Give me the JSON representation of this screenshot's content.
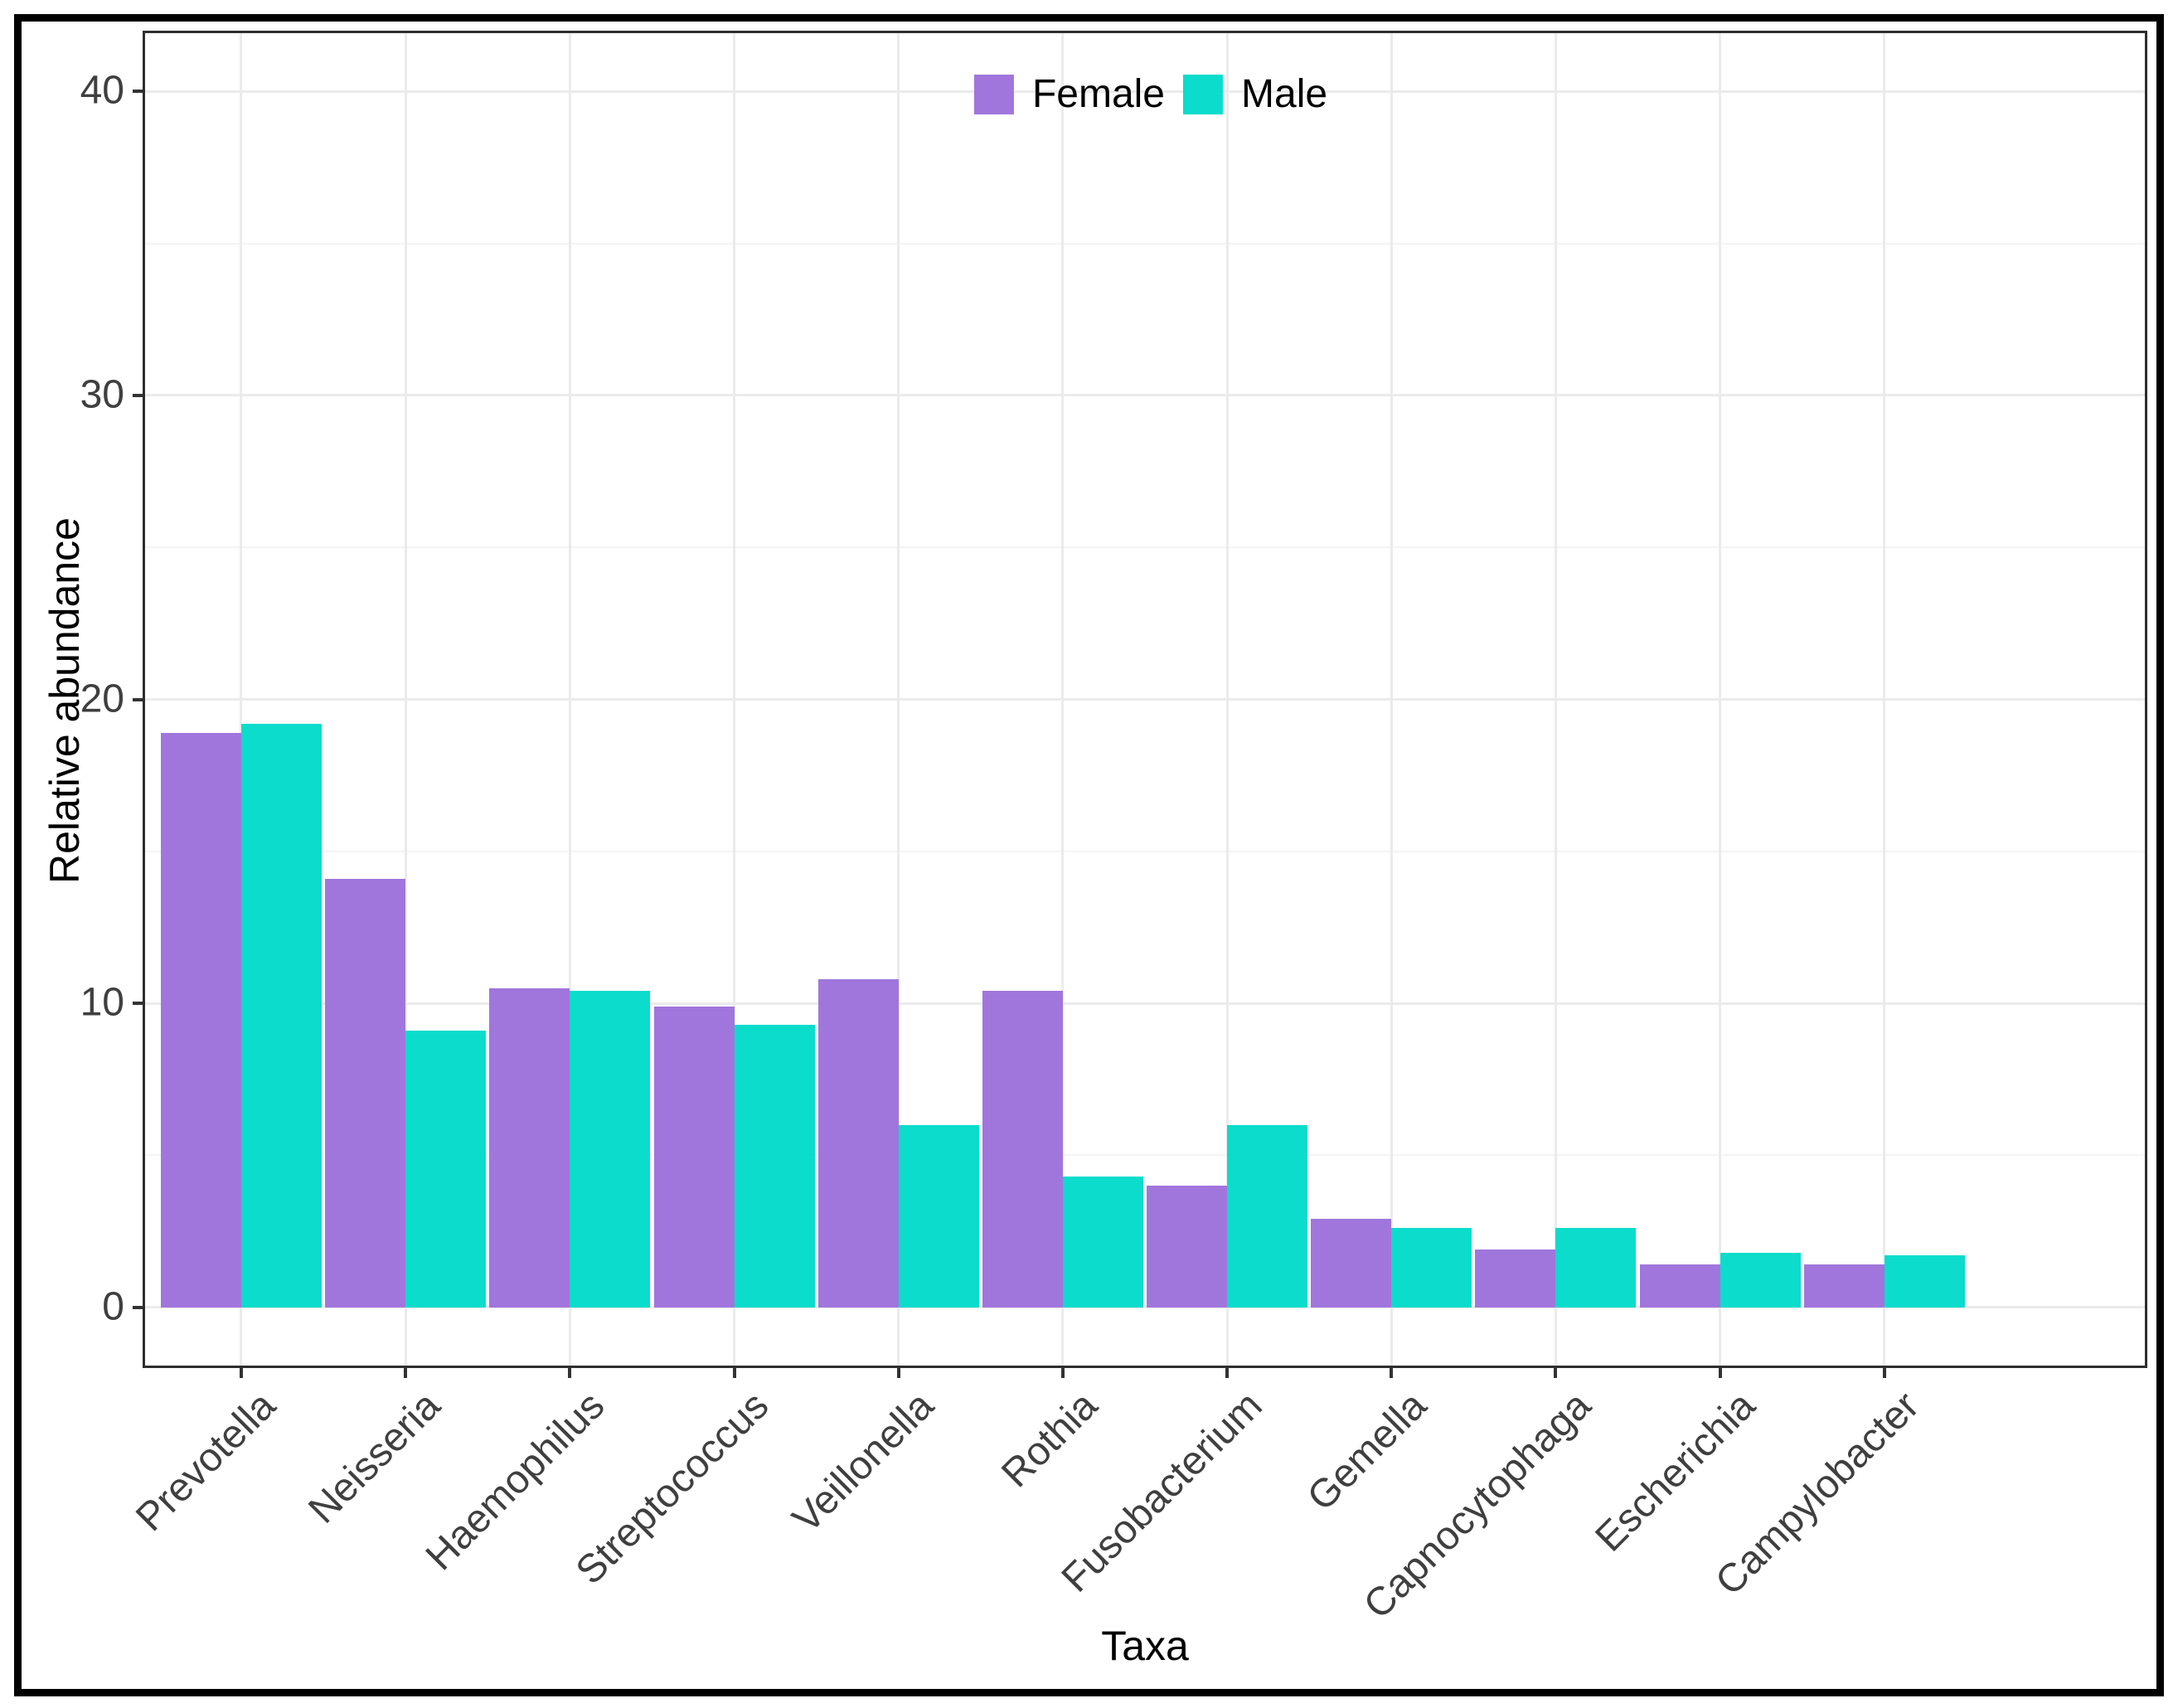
{
  "figure": {
    "background": "#ffffff",
    "border_color": "#000000"
  },
  "legend": {
    "position": "top-center-inside",
    "items": [
      {
        "label": "Female",
        "color": "#a076dc",
        "key_shape": "square"
      },
      {
        "label": "Male",
        "color": "#0bdccb",
        "key_shape": "square"
      }
    ]
  },
  "chart_data": {
    "type": "bar",
    "bar_grouping": "dodge",
    "title": "",
    "xlabel": "Taxa",
    "ylabel": "Relative abundance",
    "categories": [
      "Prevotella",
      "Neisseria",
      "Haemophilus",
      "Streptococcus",
      "Veillonella",
      "Rothia",
      "Fusobacterium",
      "Gemella",
      "Capnocytophaga",
      "Escherichia",
      "Campylobacter"
    ],
    "series": [
      {
        "name": "Female",
        "color": "#a076dc",
        "values": [
          18.9,
          14.1,
          10.5,
          9.9,
          10.8,
          10.4,
          4.0,
          2.9,
          1.9,
          1.4,
          1.4
        ]
      },
      {
        "name": "Male",
        "color": "#0bdccb",
        "values": [
          19.2,
          9.1,
          10.4,
          9.3,
          6.0,
          4.3,
          6.0,
          2.6,
          2.6,
          1.8,
          1.7
        ]
      }
    ],
    "ylim": [
      0,
      40
    ],
    "y_major_ticks": [
      0,
      10,
      20,
      30,
      40
    ],
    "y_minor_gridlines": [
      5,
      15,
      25,
      35
    ],
    "x_tick_label_angle_deg": 45,
    "grid": "on",
    "legend_position": "top-center-inside"
  },
  "colors": {
    "grid_major": "#ebebeb",
    "grid_minor": "#f4f4f4",
    "axis_text": "#3f3f3f",
    "axis_line": "#333333",
    "panel_border": "#2e2e2e"
  }
}
